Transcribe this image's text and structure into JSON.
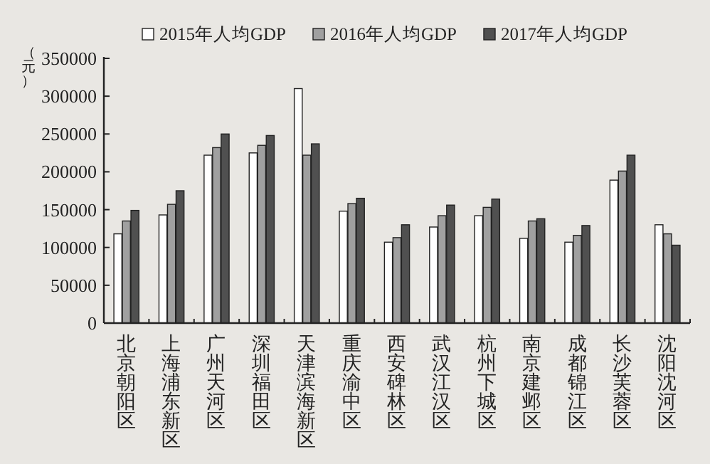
{
  "chart_data": {
    "type": "bar",
    "ylabel": "（元）",
    "legend": "top",
    "categories": [
      "北京朝阳区",
      "上海浦东新区",
      "广州天河区",
      "深圳福田区",
      "天津滨海新区",
      "重庆渝中区",
      "西安碑林区",
      "武汉江汉区",
      "杭州下城区",
      "南京建邺区",
      "成都锦江区",
      "长沙芙蓉区",
      "沈阳沈河区"
    ],
    "ylim": [
      0,
      350000
    ],
    "yticks": [
      0,
      50000,
      100000,
      150000,
      200000,
      250000,
      300000,
      350000
    ],
    "series": [
      {
        "name": "2015年人均GDP",
        "color": "#ffffff",
        "values": [
          118000,
          143000,
          222000,
          225000,
          310000,
          148000,
          107000,
          127000,
          142000,
          112000,
          107000,
          189000,
          130000
        ]
      },
      {
        "name": "2016年人均GDP",
        "color": "#a0a0a0",
        "values": [
          135000,
          157000,
          232000,
          235000,
          222000,
          158000,
          113000,
          142000,
          153000,
          135000,
          116000,
          201000,
          118000
        ]
      },
      {
        "name": "2017年人均GDP",
        "color": "#505050",
        "values": [
          149000,
          175000,
          250000,
          248000,
          237000,
          165000,
          130000,
          156000,
          164000,
          138000,
          129000,
          222000,
          103000
        ]
      }
    ]
  }
}
